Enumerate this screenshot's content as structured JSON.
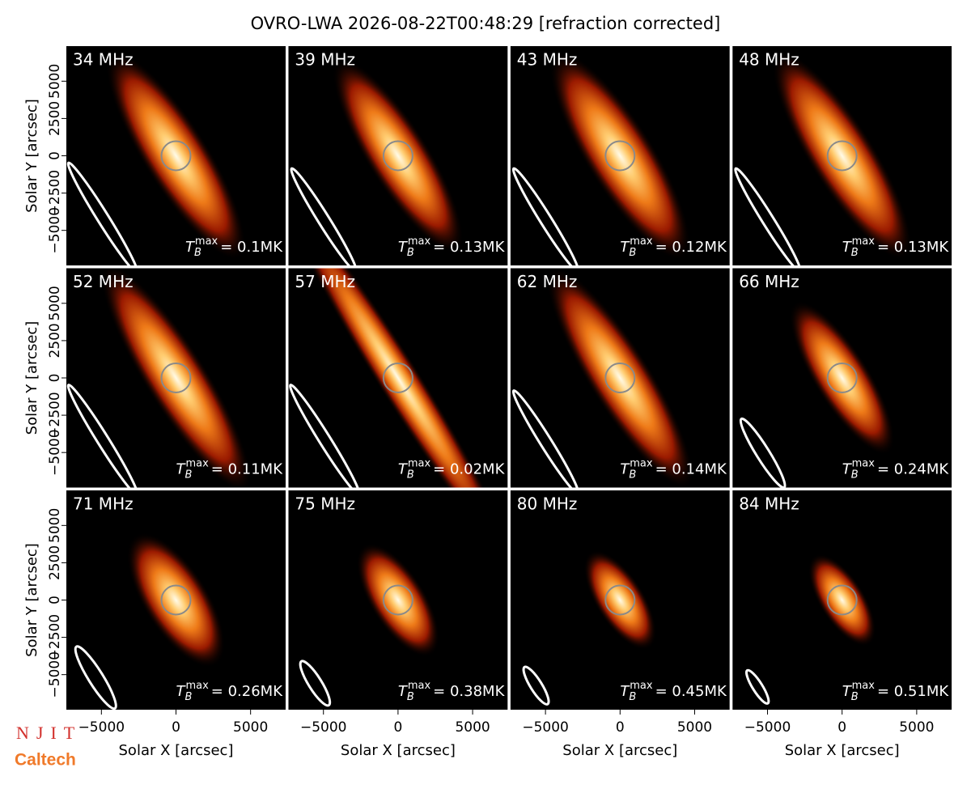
{
  "chart_data": {
    "type": "image-grid",
    "title": "OVRO-LWA 2026-08-22T00:48:29 [refraction corrected]",
    "x_label": "Solar X [arcsec]",
    "y_label": "Solar Y [arcsec]",
    "xlim": [
      -7350,
      7350
    ],
    "ylim": [
      -7350,
      7350
    ],
    "xticks": [
      {
        "value": -5000,
        "label": "−5000"
      },
      0,
      5000
    ],
    "yticks": [
      {
        "value": -5000,
        "label": "−5000"
      },
      {
        "value": -2500,
        "label": "−2500"
      },
      0,
      2500,
      5000
    ],
    "tb_symbol": "T",
    "tb_subscript": "B",
    "tb_superscript": "max",
    "panels": [
      {
        "frequency": "34 MHz",
        "peak": "= 0.1MK"
      },
      {
        "frequency": "39 MHz",
        "peak": "= 0.13MK"
      },
      {
        "frequency": "43 MHz",
        "peak": "= 0.12MK"
      },
      {
        "frequency": "48 MHz",
        "peak": "= 0.13MK"
      },
      {
        "frequency": "52 MHz",
        "peak": "= 0.11MK"
      },
      {
        "frequency": "57 MHz",
        "peak": "= 0.02MK"
      },
      {
        "frequency": "62 MHz",
        "peak": "= 0.14MK"
      },
      {
        "frequency": "66 MHz",
        "peak": "= 0.24MK"
      },
      {
        "frequency": "71 MHz",
        "peak": "= 0.26MK"
      },
      {
        "frequency": "75 MHz",
        "peak": "= 0.38MK"
      },
      {
        "frequency": "80 MHz",
        "peak": "= 0.45MK"
      },
      {
        "frequency": "84 MHz",
        "peak": "= 0.51MK"
      }
    ],
    "logos": [
      "NJIT",
      "Caltech"
    ]
  }
}
